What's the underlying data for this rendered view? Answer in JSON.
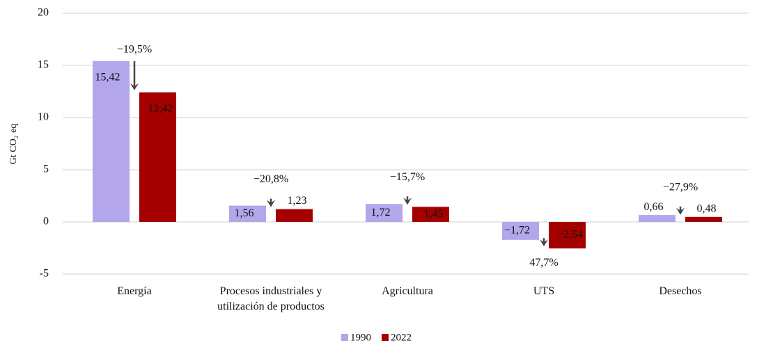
{
  "chart_data": {
    "type": "bar",
    "y_label": "Gt CO₂ eq",
    "categories": [
      "Energía",
      "Procesos industriales y\nutilización de productos",
      "Agricultura",
      "UTS",
      "Desechos"
    ],
    "series": [
      {
        "name": "1990",
        "color": "#b3a6ea",
        "values": [
          15.42,
          1.56,
          1.72,
          -1.72,
          0.66
        ],
        "value_labels": [
          "15,42",
          "1,56",
          "1,72",
          "−1,72",
          "0,66"
        ]
      },
      {
        "name": "2022",
        "color": "#a50000",
        "values": [
          12.42,
          1.23,
          1.45,
          -2.54,
          0.48
        ],
        "value_labels": [
          "12,42",
          "1,23",
          "1,45",
          "−2,54",
          "0,48"
        ]
      }
    ],
    "change_labels": [
      "−19,5%",
      "−20,8%",
      "−15,7%",
      "47,7%",
      "−27,9%"
    ],
    "ylim": [
      -5,
      20
    ],
    "yticks": [
      -5,
      0,
      5,
      10,
      15,
      20
    ],
    "grid": true,
    "legend": "bottom"
  }
}
